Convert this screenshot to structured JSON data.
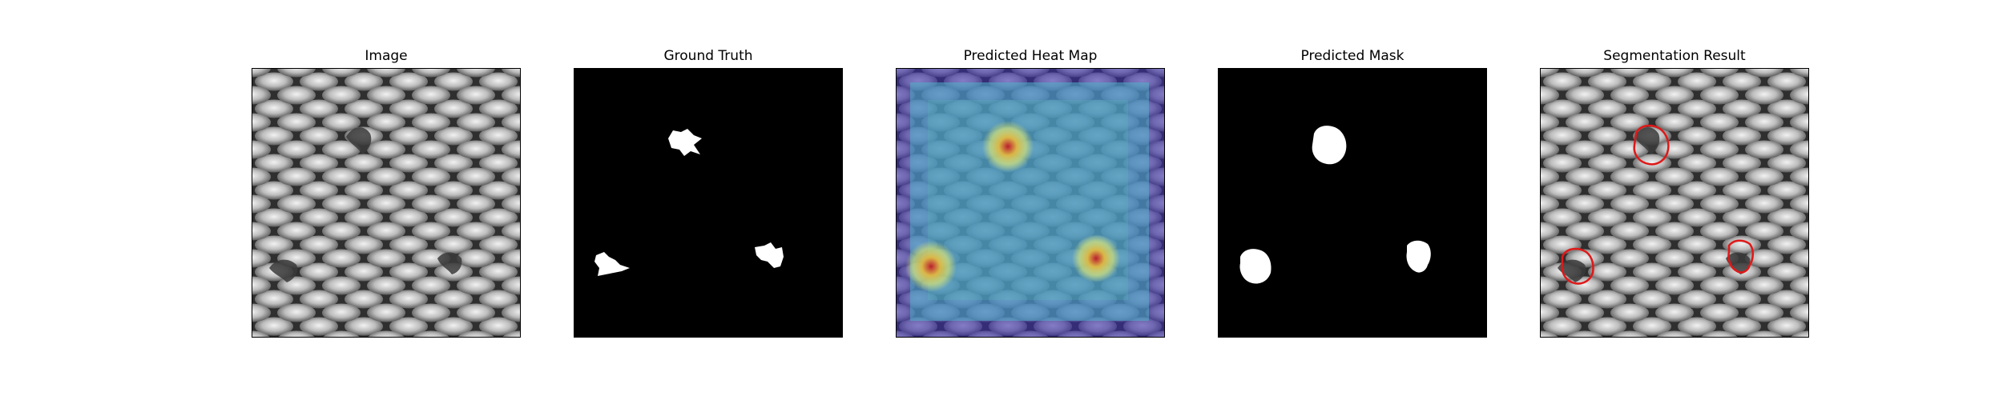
{
  "figure": {
    "panels": [
      {
        "id": "image",
        "title": "Image"
      },
      {
        "id": "ground-truth",
        "title": "Ground Truth"
      },
      {
        "id": "heatmap",
        "title": "Predicted Heat Map"
      },
      {
        "id": "predicted-mask",
        "title": "Predicted Mask"
      },
      {
        "id": "segmentation",
        "title": "Segmentation Result"
      }
    ],
    "colors": {
      "background": "#ffffff",
      "mask_foreground": "#ffffff",
      "mask_background": "#000000",
      "mesh_dark": "#3a3a3a",
      "mesh_light": "#cfcfcf",
      "contour": "#e01818",
      "heat_low": "#3b2fa8",
      "heat_mid": "#4fb6c8",
      "heat_high": "#f0e23a",
      "heat_peak": "#c01828"
    }
  }
}
